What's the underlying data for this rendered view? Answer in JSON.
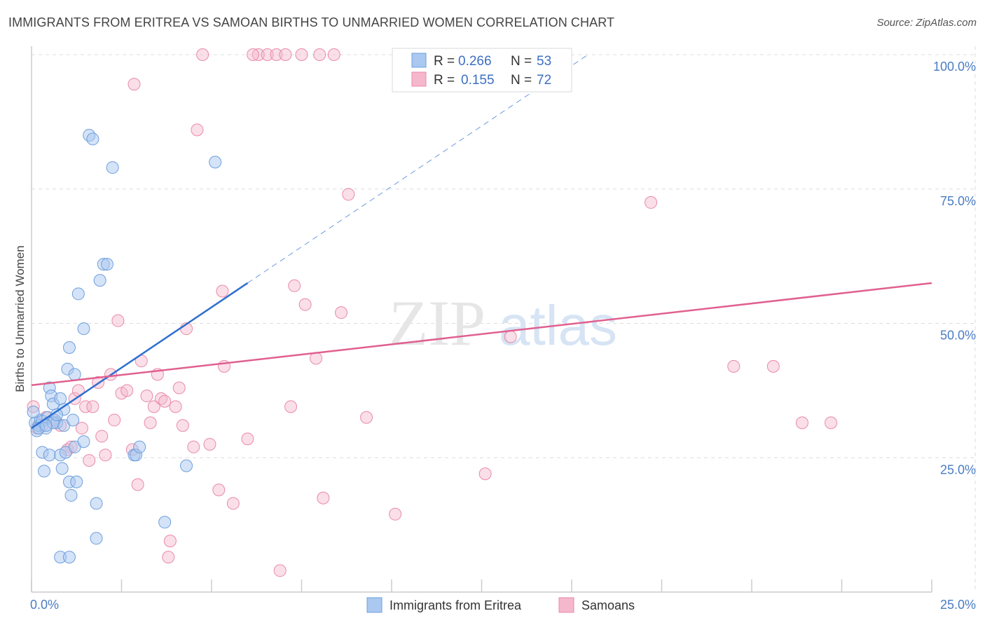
{
  "header": {
    "title": "IMMIGRANTS FROM ERITREA VS SAMOAN BIRTHS TO UNMARRIED WOMEN CORRELATION CHART",
    "source": "Source: ZipAtlas.com"
  },
  "watermark": {
    "zip": "ZIP",
    "atlas": "atlas"
  },
  "colors": {
    "blue_fill": "#aac8f0",
    "blue_stroke": "#6e9fdc",
    "blue_line": "#2d6fd0",
    "pink_fill": "#f5b7cb",
    "pink_stroke": "#e98aa9",
    "pink_line": "#e0608f",
    "grid": "#dddddd",
    "tick_label": "#4a7cc4"
  },
  "legend": {
    "rows": [
      {
        "r_label": "R =",
        "r_value": "0.266",
        "n_label": "N =",
        "n_value": "53"
      },
      {
        "r_label": "R =",
        "r_value": "0.155",
        "n_label": "N =",
        "n_value": "72"
      }
    ]
  },
  "chart_data": {
    "type": "scatter",
    "title": "IMMIGRANTS FROM ERITREA VS SAMOAN BIRTHS TO UNMARRIED WOMEN CORRELATION CHART",
    "xlabel": "",
    "ylabel": "Births to Unmarried Women",
    "xlim": [
      0,
      25
    ],
    "ylim": [
      0,
      100
    ],
    "x_tick_labels": [
      "0.0%",
      "25.0%"
    ],
    "y_ticks": [
      25,
      50,
      75,
      100
    ],
    "y_tick_labels": [
      "25.0%",
      "50.0%",
      "75.0%",
      "100.0%"
    ],
    "series": [
      {
        "name": "Immigrants from Eritrea",
        "color": "#aac8f0",
        "trend": {
          "x0": 0.0,
          "y0": 30.5,
          "x1": 6.0,
          "y1": 57.5,
          "dash_to_x": 15.5,
          "dash_to_y": 100.2
        },
        "points": [
          [
            0.1,
            31.5
          ],
          [
            0.15,
            30.0
          ],
          [
            0.2,
            31.0
          ],
          [
            0.25,
            32.0
          ],
          [
            0.3,
            31.8
          ],
          [
            0.3,
            26.0
          ],
          [
            0.35,
            22.5
          ],
          [
            0.4,
            30.5
          ],
          [
            0.45,
            32.5
          ],
          [
            0.5,
            38.0
          ],
          [
            0.5,
            25.5
          ],
          [
            0.55,
            36.5
          ],
          [
            0.6,
            35.0
          ],
          [
            0.65,
            32.0
          ],
          [
            0.7,
            31.5
          ],
          [
            0.8,
            36.0
          ],
          [
            0.8,
            25.5
          ],
          [
            0.85,
            23.0
          ],
          [
            0.8,
            6.5
          ],
          [
            0.9,
            31.0
          ],
          [
            0.9,
            34.0
          ],
          [
            0.95,
            26.0
          ],
          [
            1.0,
            41.5
          ],
          [
            1.05,
            6.5
          ],
          [
            1.05,
            20.5
          ],
          [
            1.05,
            45.5
          ],
          [
            1.1,
            18.0
          ],
          [
            1.15,
            32.0
          ],
          [
            1.2,
            27.0
          ],
          [
            1.2,
            40.5
          ],
          [
            1.25,
            20.5
          ],
          [
            1.3,
            55.5
          ],
          [
            1.45,
            49.0
          ],
          [
            1.45,
            28.0
          ],
          [
            1.6,
            85.0
          ],
          [
            1.7,
            84.3
          ],
          [
            1.8,
            16.5
          ],
          [
            1.8,
            10.0
          ],
          [
            1.9,
            58.0
          ],
          [
            2.0,
            61.0
          ],
          [
            2.1,
            61.0
          ],
          [
            2.25,
            79.0
          ],
          [
            2.85,
            25.5
          ],
          [
            2.9,
            25.5
          ],
          [
            3.0,
            27.0
          ],
          [
            3.7,
            13.0
          ],
          [
            4.3,
            23.5
          ],
          [
            5.1,
            80.0
          ],
          [
            0.05,
            33.5
          ],
          [
            0.2,
            30.5
          ],
          [
            0.6,
            31.5
          ],
          [
            0.7,
            33.0
          ],
          [
            0.4,
            31.0
          ]
        ]
      },
      {
        "name": "Samoans",
        "color": "#f5b7cb",
        "trend": {
          "x0": 0.0,
          "y0": 38.5,
          "x1": 25.0,
          "y1": 57.5
        },
        "points": [
          [
            0.05,
            34.5
          ],
          [
            0.15,
            30.5
          ],
          [
            0.3,
            31.0
          ],
          [
            0.4,
            32.5
          ],
          [
            0.6,
            32.0
          ],
          [
            0.8,
            31.0
          ],
          [
            1.0,
            26.5
          ],
          [
            1.1,
            27.0
          ],
          [
            1.2,
            36.0
          ],
          [
            1.3,
            37.5
          ],
          [
            1.4,
            30.5
          ],
          [
            1.5,
            34.5
          ],
          [
            1.6,
            24.5
          ],
          [
            1.7,
            34.5
          ],
          [
            1.85,
            39.0
          ],
          [
            1.95,
            29.0
          ],
          [
            2.05,
            25.5
          ],
          [
            2.2,
            40.5
          ],
          [
            2.3,
            32.0
          ],
          [
            2.4,
            50.5
          ],
          [
            2.5,
            37.0
          ],
          [
            2.65,
            37.5
          ],
          [
            2.8,
            26.5
          ],
          [
            2.85,
            94.5
          ],
          [
            2.95,
            20.0
          ],
          [
            3.05,
            43.0
          ],
          [
            3.2,
            36.5
          ],
          [
            3.3,
            31.5
          ],
          [
            3.4,
            34.5
          ],
          [
            3.5,
            40.5
          ],
          [
            3.6,
            36.0
          ],
          [
            3.7,
            35.5
          ],
          [
            3.8,
            6.5
          ],
          [
            3.85,
            9.5
          ],
          [
            4.0,
            34.5
          ],
          [
            4.1,
            38.0
          ],
          [
            4.2,
            31.0
          ],
          [
            4.3,
            49.0
          ],
          [
            4.5,
            27.0
          ],
          [
            4.6,
            86.0
          ],
          [
            4.75,
            100.0
          ],
          [
            4.95,
            27.5
          ],
          [
            5.2,
            19.0
          ],
          [
            5.3,
            56.0
          ],
          [
            5.35,
            42.0
          ],
          [
            5.6,
            16.5
          ],
          [
            6.0,
            28.5
          ],
          [
            6.3,
            100.0
          ],
          [
            6.55,
            100.0
          ],
          [
            6.8,
            100.0
          ],
          [
            6.9,
            4.0
          ],
          [
            7.05,
            100.0
          ],
          [
            7.2,
            34.5
          ],
          [
            7.3,
            57.0
          ],
          [
            7.5,
            100.0
          ],
          [
            7.6,
            53.5
          ],
          [
            7.9,
            43.5
          ],
          [
            8.0,
            100.0
          ],
          [
            8.1,
            17.5
          ],
          [
            8.4,
            100.0
          ],
          [
            8.6,
            52.0
          ],
          [
            8.8,
            74.0
          ],
          [
            9.3,
            32.5
          ],
          [
            10.1,
            14.5
          ],
          [
            12.6,
            22.0
          ],
          [
            13.3,
            47.5
          ],
          [
            17.2,
            72.5
          ],
          [
            19.5,
            42.0
          ],
          [
            20.6,
            42.0
          ],
          [
            21.4,
            31.5
          ],
          [
            22.2,
            31.5
          ],
          [
            6.15,
            100.0
          ]
        ]
      }
    ]
  },
  "bottom_legend": {
    "items": [
      {
        "label": "Immigrants from Eritrea"
      },
      {
        "label": "Samoans"
      }
    ]
  }
}
